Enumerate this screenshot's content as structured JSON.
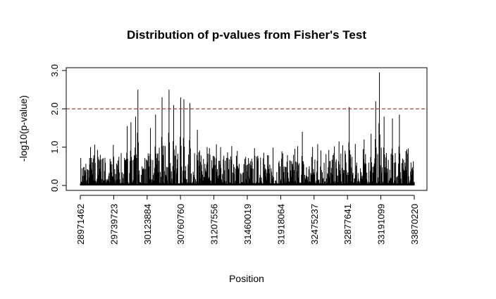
{
  "chart_data": {
    "type": "bar",
    "title": "Distribution of p-values from Fisher's Test",
    "xlabel": "Position",
    "ylabel": "-log10(p-value)",
    "ylim": [
      0,
      3.0
    ],
    "y_ticks": [
      "0.0",
      "1.0",
      "2.0",
      "3.0"
    ],
    "x_tick_labels": [
      "28971462",
      "29739723",
      "30123884",
      "30760760",
      "31207556",
      "31460019",
      "31918064",
      "32475237",
      "32877641",
      "33191099",
      "33870220"
    ],
    "threshold": {
      "value": 2.0,
      "style": "dashed",
      "color": "#a0302a"
    },
    "bar_color": "#000000",
    "grid": false,
    "legend": "none",
    "peaks": [
      {
        "x": 0.03,
        "y": 1.0
      },
      {
        "x": 0.06,
        "y": 0.8
      },
      {
        "x": 0.09,
        "y": 0.55
      },
      {
        "x": 0.115,
        "y": 0.75
      },
      {
        "x": 0.14,
        "y": 1.55
      },
      {
        "x": 0.152,
        "y": 1.65
      },
      {
        "x": 0.165,
        "y": 1.8
      },
      {
        "x": 0.172,
        "y": 2.5
      },
      {
        "x": 0.21,
        "y": 1.5
      },
      {
        "x": 0.225,
        "y": 1.85
      },
      {
        "x": 0.245,
        "y": 2.3
      },
      {
        "x": 0.265,
        "y": 2.5
      },
      {
        "x": 0.28,
        "y": 2.1
      },
      {
        "x": 0.3,
        "y": 2.3
      },
      {
        "x": 0.31,
        "y": 2.25
      },
      {
        "x": 0.328,
        "y": 2.15
      },
      {
        "x": 0.35,
        "y": 1.45
      },
      {
        "x": 0.38,
        "y": 1.0
      },
      {
        "x": 0.42,
        "y": 1.0
      },
      {
        "x": 0.47,
        "y": 0.9
      },
      {
        "x": 0.55,
        "y": 0.85
      },
      {
        "x": 0.62,
        "y": 0.75
      },
      {
        "x": 0.665,
        "y": 1.4
      },
      {
        "x": 0.72,
        "y": 0.9
      },
      {
        "x": 0.775,
        "y": 1.15
      },
      {
        "x": 0.805,
        "y": 2.05
      },
      {
        "x": 0.85,
        "y": 1.2
      },
      {
        "x": 0.87,
        "y": 1.35
      },
      {
        "x": 0.885,
        "y": 2.2
      },
      {
        "x": 0.895,
        "y": 2.95
      },
      {
        "x": 0.91,
        "y": 1.8
      },
      {
        "x": 0.935,
        "y": 1.75
      },
      {
        "x": 0.955,
        "y": 1.85
      },
      {
        "x": 0.975,
        "y": 0.9
      },
      {
        "x": 0.99,
        "y": 0.6
      }
    ],
    "baseline_low": 0.05,
    "baseline_high": 0.55,
    "n_bars": 720,
    "seed": 7
  }
}
